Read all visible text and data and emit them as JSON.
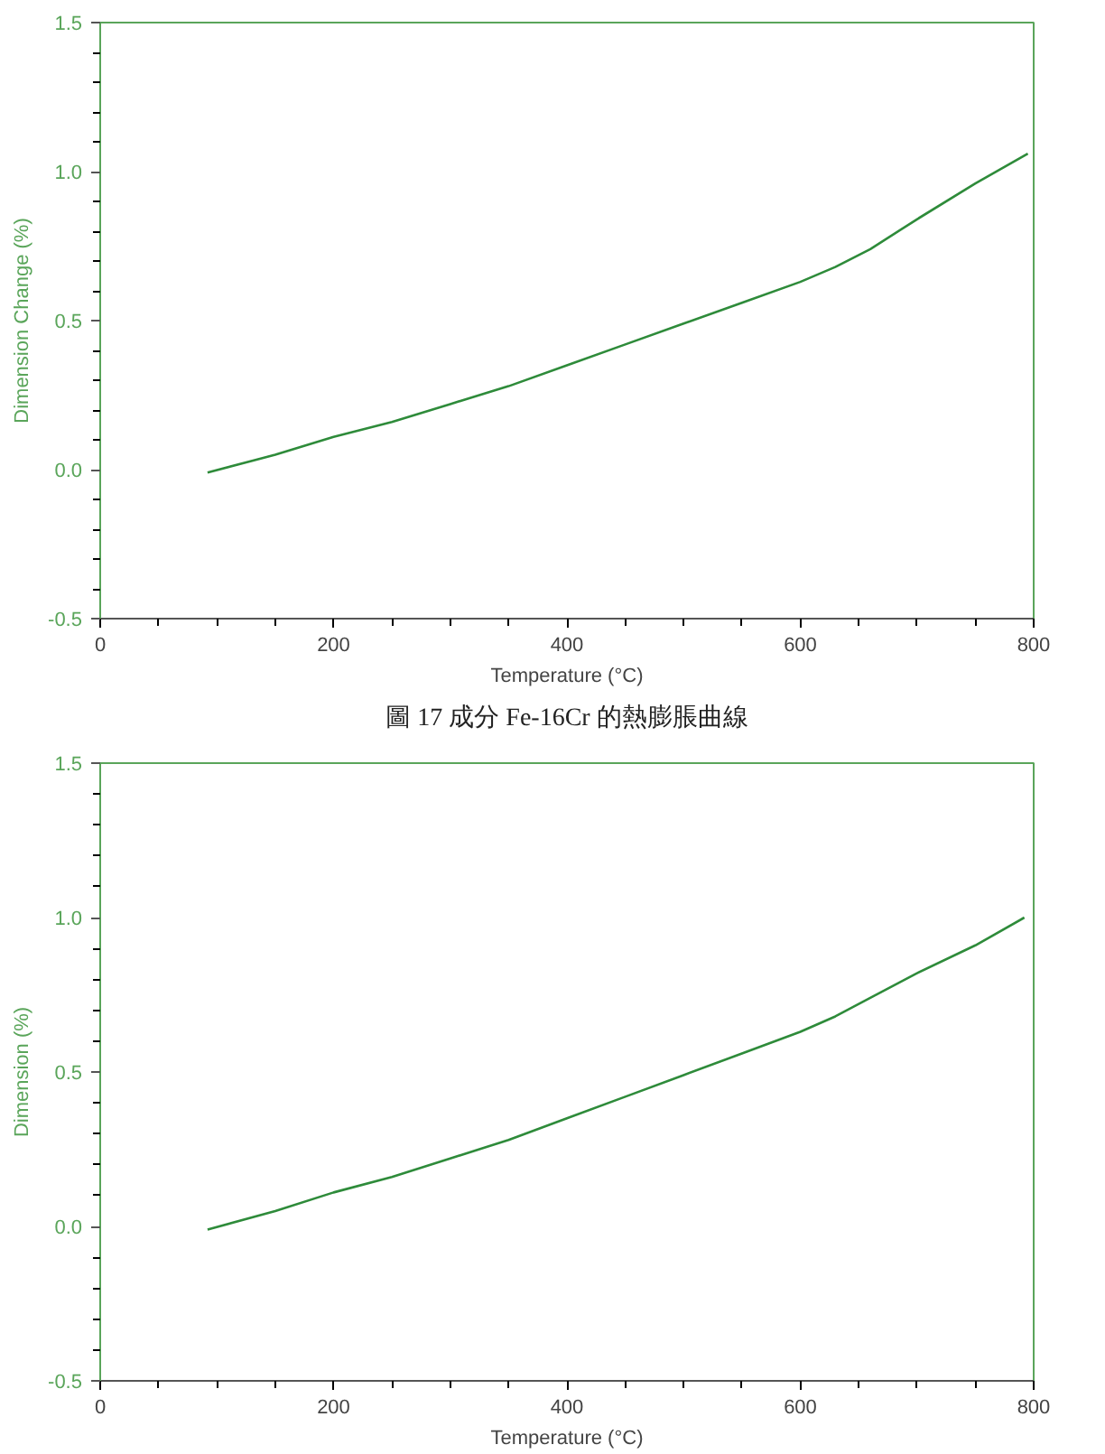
{
  "chart_data": [
    {
      "type": "line",
      "xlabel": "Temperature (°C)",
      "ylabel": "Dimension Change (%)",
      "x": [
        92,
        150,
        200,
        250,
        300,
        350,
        400,
        450,
        500,
        550,
        600,
        630,
        660,
        700,
        750,
        795
      ],
      "series": [
        {
          "color": "#2e8b3a",
          "values": [
            -0.01,
            0.05,
            0.11,
            0.16,
            0.22,
            0.28,
            0.35,
            0.42,
            0.49,
            0.56,
            0.63,
            0.68,
            0.74,
            0.84,
            0.96,
            1.06
          ]
        }
      ],
      "xlim": [
        0,
        800
      ],
      "ylim": [
        -0.5,
        1.5
      ],
      "xticks": [
        0,
        200,
        400,
        600,
        800
      ],
      "yticks": [
        {
          "value": -0.5,
          "label": "-0.5"
        },
        {
          "value": 0,
          "label": "0.0"
        },
        {
          "value": 0.5,
          "label": "0.5"
        },
        {
          "value": 1,
          "label": "1.0"
        },
        {
          "value": 1.5,
          "label": "1.5"
        }
      ],
      "grid": false,
      "annotations": [
        "圖 17 成分 Fe-16Cr 的熱膨脹曲線"
      ]
    },
    {
      "type": "line",
      "xlabel": "Temperature (°C)",
      "ylabel": "Dimension (%)",
      "x": [
        92,
        150,
        200,
        250,
        300,
        350,
        400,
        450,
        500,
        550,
        600,
        630,
        660,
        700,
        750,
        792
      ],
      "series": [
        {
          "color": "#2e8b3a",
          "values": [
            -0.01,
            0.05,
            0.11,
            0.16,
            0.22,
            0.28,
            0.35,
            0.42,
            0.49,
            0.56,
            0.63,
            0.68,
            0.74,
            0.82,
            0.91,
            1.0
          ]
        }
      ],
      "xlim": [
        0,
        800
      ],
      "ylim": [
        -0.5,
        1.5
      ],
      "xticks": [
        0,
        200,
        400,
        600,
        800
      ],
      "yticks": [
        {
          "value": -0.5,
          "label": "-0.5"
        },
        {
          "value": 0,
          "label": "0.0"
        },
        {
          "value": 0.5,
          "label": "0.5"
        },
        {
          "value": 1,
          "label": "1.0"
        },
        {
          "value": 1.5,
          "label": "1.5"
        }
      ],
      "grid": false
    }
  ]
}
